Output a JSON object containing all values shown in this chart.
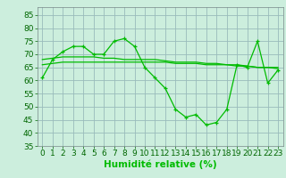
{
  "x": [
    0,
    1,
    2,
    3,
    4,
    5,
    6,
    7,
    8,
    9,
    10,
    11,
    12,
    13,
    14,
    15,
    16,
    17,
    18,
    19,
    20,
    21,
    22,
    23
  ],
  "y_main": [
    61,
    68,
    71,
    73,
    73,
    70,
    70,
    75,
    76,
    73,
    65,
    61,
    57,
    49,
    46,
    47,
    43,
    44,
    49,
    66,
    65,
    75,
    59,
    64
  ],
  "y_trend1": [
    68,
    68.5,
    69,
    69,
    69,
    69,
    68.5,
    68.5,
    68,
    68,
    68,
    68,
    67.5,
    67,
    67,
    67,
    66.5,
    66.5,
    66,
    66,
    65.5,
    65,
    65,
    65
  ],
  "y_trend2": [
    66,
    66.5,
    67,
    67,
    67,
    67,
    67,
    67,
    67,
    67,
    67,
    67,
    67,
    66.5,
    66.5,
    66.5,
    66,
    66,
    66,
    65.5,
    65.5,
    65,
    65,
    64.5
  ],
  "line_color": "#00BB00",
  "bg_color": "#CCEEDD",
  "grid_color": "#99BBBB",
  "xlabel": "Humidité relative (%)",
  "ylim": [
    35,
    88
  ],
  "xlim": [
    -0.5,
    23.5
  ],
  "yticks": [
    35,
    40,
    45,
    50,
    55,
    60,
    65,
    70,
    75,
    80,
    85
  ],
  "xticks": [
    0,
    1,
    2,
    3,
    4,
    5,
    6,
    7,
    8,
    9,
    10,
    11,
    12,
    13,
    14,
    15,
    16,
    17,
    18,
    19,
    20,
    21,
    22,
    23
  ],
  "tick_color": "#006600",
  "label_fontsize": 6.5,
  "xlabel_fontsize": 7.5
}
